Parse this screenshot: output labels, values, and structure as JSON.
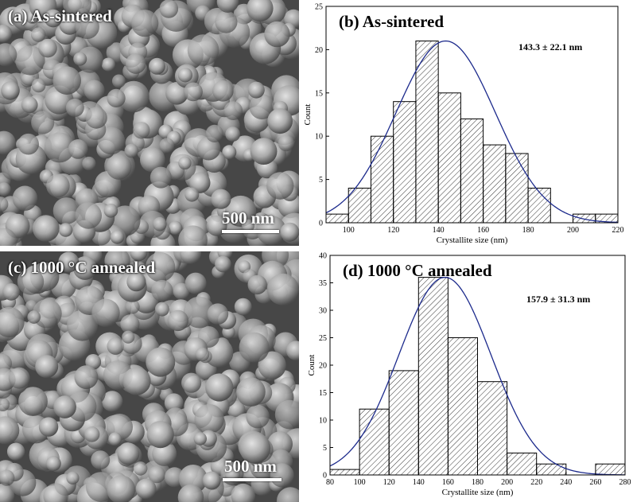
{
  "panels": {
    "a": {
      "label": "(a) As-sintered",
      "scale": "500 nm"
    },
    "c": {
      "label": "(c) 1000 °C annealed",
      "scale": "500 nm"
    }
  },
  "chart_data": [
    {
      "type": "bar",
      "panel": "b",
      "title": "(b) As-sintered",
      "annotation": "143.3 ± 22.1 nm",
      "xlabel": "Crystallite size (nm)",
      "ylabel": "Count",
      "xlim": [
        90,
        220
      ],
      "ylim": [
        0,
        25
      ],
      "xticks": [
        100,
        120,
        140,
        160,
        180,
        200,
        220
      ],
      "yticks": [
        0,
        5,
        10,
        15,
        20,
        25
      ],
      "bin_edges": [
        90,
        100,
        110,
        120,
        130,
        140,
        150,
        160,
        170,
        180,
        190,
        200,
        210,
        220
      ],
      "values": [
        1,
        4,
        10,
        14,
        21,
        15,
        12,
        9,
        8,
        4,
        0,
        1,
        1
      ],
      "fit": {
        "type": "gaussian",
        "mean": 143.3,
        "sd": 22.1,
        "peak": 21,
        "color": "#1c2a8c"
      },
      "grid": false,
      "hatch_color": "#000000"
    },
    {
      "type": "bar",
      "panel": "d",
      "title": "(d) 1000 °C annealed",
      "annotation": "157.9 ± 31.3 nm",
      "xlabel": "Crystallite size (nm)",
      "ylabel": "Count",
      "xlim": [
        80,
        280
      ],
      "ylim": [
        0,
        40
      ],
      "xticks": [
        80,
        100,
        120,
        140,
        160,
        180,
        200,
        220,
        240,
        260,
        280
      ],
      "yticks": [
        0,
        5,
        10,
        15,
        20,
        25,
        30,
        35,
        40
      ],
      "bin_edges": [
        80,
        100,
        120,
        140,
        160,
        180,
        200,
        220,
        240,
        260,
        280
      ],
      "values": [
        1,
        12,
        19,
        36,
        25,
        17,
        4,
        2,
        0,
        2
      ],
      "fit": {
        "type": "gaussian",
        "mean": 157.9,
        "sd": 31.3,
        "peak": 36,
        "color": "#1c2a8c"
      },
      "grid": false,
      "hatch_color": "#000000"
    }
  ]
}
